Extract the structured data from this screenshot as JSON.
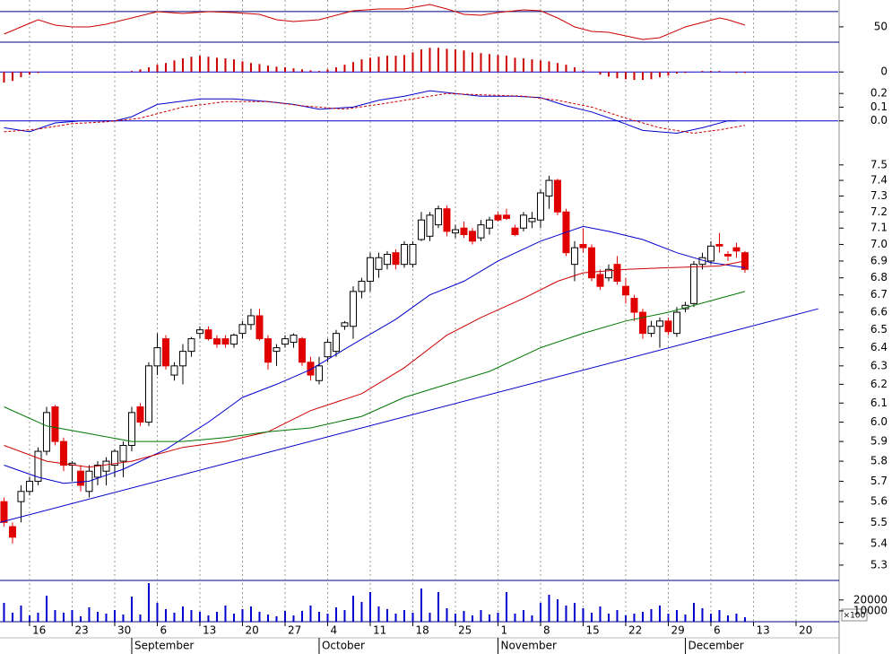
{
  "chart_data": [
    {
      "type": "line",
      "ylim": [
        30,
        85
      ],
      "yticks": [
        50
      ],
      "hlines": [
        70
      ],
      "series": [
        {
          "color": "#cc0000",
          "x": [
            0,
            2,
            4,
            6,
            8,
            10,
            12,
            15,
            18,
            21,
            24,
            27,
            30,
            32,
            34,
            37,
            41,
            44,
            47,
            50,
            52,
            54,
            56,
            58,
            61,
            63,
            65,
            67,
            69,
            71,
            73,
            75,
            77,
            80,
            82,
            84,
            85,
            87
          ],
          "values": [
            40.5,
            49.9,
            59.3,
            52.2,
            49.9,
            49.9,
            53.4,
            61.6,
            69.8,
            67.4,
            69.8,
            68.6,
            66.3,
            59.3,
            56.9,
            59.3,
            71,
            73.3,
            73.3,
            79.2,
            73.3,
            66.3,
            65.1,
            68.6,
            72.1,
            71,
            61.6,
            49.9,
            44,
            42.9,
            38.2,
            33.5,
            35.9,
            49.9,
            55.7,
            61.6,
            59.3,
            52.2
          ]
        }
      ]
    },
    {
      "type": "bar",
      "ylim": [
        -0.04,
        0.09
      ],
      "yticks": [
        0
      ],
      "zero_line": true,
      "color": "#cc0000",
      "values": [
        -0.032,
        -0.027,
        -0.016,
        -0.008,
        -0.003,
        0,
        0,
        0,
        0,
        0,
        0,
        0,
        0,
        0,
        0,
        0.003,
        0.008,
        0.014,
        0.022,
        0.027,
        0.035,
        0.041,
        0.046,
        0.049,
        0.046,
        0.043,
        0.041,
        0.038,
        0.032,
        0.027,
        0.024,
        0.019,
        0.016,
        0.014,
        0.011,
        0.008,
        0.005,
        0.003,
        0.008,
        0.014,
        0.022,
        0.03,
        0.038,
        0.043,
        0.046,
        0.049,
        0.049,
        0.051,
        0.059,
        0.068,
        0.073,
        0.073,
        0.07,
        0.068,
        0.065,
        0.059,
        0.057,
        0.054,
        0.051,
        0.049,
        0.043,
        0.041,
        0.038,
        0.035,
        0.032,
        0.027,
        0.022,
        0.014,
        0.005,
        0,
        -0.008,
        -0.014,
        -0.019,
        -0.022,
        -0.024,
        -0.024,
        -0.022,
        -0.016,
        -0.011,
        -0.005,
        -0.003,
        0,
        0.003,
        0.003,
        0.003,
        0,
        -0.003,
        -0.003
      ]
    },
    {
      "type": "line",
      "ylim": [
        -0.1,
        0.26
      ],
      "yticks": [
        0.2,
        0.1,
        {
          "value": 0,
          "label": "0.0"
        }
      ],
      "zero_line": true,
      "series": [
        {
          "color": "#0000cc",
          "x": [
            0,
            3,
            6,
            9,
            13,
            15,
            18,
            23,
            27,
            31,
            34,
            37,
            41,
            44,
            47,
            50,
            53,
            56,
            60,
            63,
            66,
            69,
            72,
            75,
            79,
            82,
            85,
            86
          ],
          "values": [
            -0.05,
            -0.08,
            -0.015,
            0,
            0,
            0.03,
            0.12,
            0.16,
            0.16,
            0.14,
            0.12,
            0.085,
            0.1,
            0.15,
            0.18,
            0.22,
            0.2,
            0.18,
            0.18,
            0.17,
            0.11,
            0.065,
            0,
            -0.07,
            -0.09,
            -0.05,
            0,
            0
          ]
        },
        {
          "color": "#cc0000",
          "dash": true,
          "x": [
            0,
            4,
            8,
            12,
            16,
            21,
            26,
            31,
            35,
            40,
            44,
            48,
            52,
            56,
            61,
            65,
            69,
            73,
            77,
            81,
            84,
            87
          ],
          "values": [
            -0.08,
            -0.06,
            -0.02,
            -0.007,
            0.02,
            0.1,
            0.14,
            0.14,
            0.11,
            0.085,
            0.12,
            0.16,
            0.2,
            0.19,
            0.18,
            0.15,
            0.1,
            0.02,
            -0.05,
            -0.09,
            -0.065,
            -0.033
          ]
        }
      ]
    },
    {
      "type": "candlestick",
      "log_scale": true,
      "ylim": [
        5.23,
        7.7
      ],
      "yticks": [
        7.5,
        7.4,
        7.3,
        7.2,
        7.1,
        {
          "value": 7,
          "label": "7.0"
        },
        6.9,
        6.8,
        6.7,
        6.6,
        6.5,
        6.4,
        6.3,
        6.2,
        6.1,
        {
          "value": 6,
          "label": "6.0"
        },
        5.9,
        5.8,
        5.7,
        5.6,
        5.5,
        5.4,
        5.3
      ],
      "up_color": "#ffffff",
      "down_color": "#e00000",
      "outline_color": "#000000",
      "open": [
        5.6,
        5.48,
        5.6,
        5.65,
        5.7,
        5.85,
        6.08,
        5.9,
        5.78,
        5.75,
        5.65,
        5.72,
        5.75,
        5.78,
        5.8,
        5.88,
        6.08,
        6.0,
        6.3,
        6.45,
        6.25,
        6.3,
        6.38,
        6.48,
        6.5,
        6.45,
        6.45,
        6.42,
        6.48,
        6.53,
        6.58,
        6.45,
        6.38,
        6.42,
        6.43,
        6.45,
        6.32,
        6.22,
        6.35,
        6.38,
        6.52,
        6.52,
        6.72,
        6.78,
        6.85,
        6.88,
        6.95,
        6.88,
        6.88,
        7.03,
        7.05,
        7.12,
        7.22,
        7.07,
        7.1,
        7.08,
        7.04,
        7.1,
        7.18,
        7.18,
        7.1,
        7.1,
        7.14,
        7.15,
        7.3,
        7.4,
        7.2,
        6.88,
        7.0,
        6.98,
        6.82,
        6.8,
        6.88,
        6.75,
        6.68,
        6.6,
        6.48,
        6.52,
        6.55,
        6.48,
        6.62,
        6.65,
        6.88,
        6.9,
        7.0,
        6.94,
        6.98,
        6.95
      ],
      "high": [
        5.62,
        5.5,
        5.68,
        5.72,
        5.87,
        6.08,
        6.09,
        5.92,
        5.8,
        5.78,
        5.78,
        5.8,
        5.82,
        5.86,
        5.9,
        6.08,
        6.1,
        6.32,
        6.48,
        6.47,
        6.32,
        6.42,
        6.46,
        6.52,
        6.52,
        6.47,
        6.47,
        6.48,
        6.55,
        6.62,
        6.62,
        6.47,
        6.42,
        6.47,
        6.48,
        6.46,
        6.35,
        6.35,
        6.45,
        6.5,
        6.55,
        6.75,
        6.8,
        6.95,
        6.95,
        6.96,
        6.97,
        7.02,
        7.02,
        7.2,
        7.2,
        7.24,
        7.24,
        7.12,
        7.14,
        7.1,
        7.15,
        7.17,
        7.2,
        7.22,
        7.12,
        7.2,
        7.2,
        7.34,
        7.43,
        7.41,
        7.22,
        7.02,
        7.1,
        7.0,
        6.85,
        6.88,
        6.93,
        6.8,
        6.7,
        6.62,
        6.55,
        6.57,
        6.57,
        6.63,
        6.66,
        6.9,
        6.95,
        7.02,
        7.07,
        6.96,
        7.01,
        6.96
      ],
      "low": [
        5.48,
        5.4,
        5.5,
        5.63,
        5.68,
        5.83,
        5.88,
        5.75,
        5.7,
        5.65,
        5.62,
        5.68,
        5.68,
        5.72,
        5.72,
        5.85,
        5.98,
        5.98,
        6.25,
        6.28,
        6.22,
        6.2,
        6.35,
        6.45,
        6.44,
        6.4,
        6.4,
        6.4,
        6.45,
        6.5,
        6.44,
        6.28,
        6.3,
        6.4,
        6.4,
        6.3,
        6.22,
        6.2,
        6.32,
        6.35,
        6.5,
        6.45,
        6.68,
        6.72,
        6.8,
        6.85,
        6.85,
        6.86,
        6.86,
        7.02,
        7.02,
        7.1,
        7.05,
        7.04,
        7.04,
        7.0,
        7.02,
        7.06,
        7.14,
        7.15,
        7.05,
        7.08,
        7.1,
        7.1,
        7.22,
        7.18,
        6.93,
        6.78,
        6.95,
        6.78,
        6.73,
        6.78,
        6.76,
        6.65,
        6.55,
        6.45,
        6.46,
        6.4,
        6.47,
        6.46,
        6.6,
        6.63,
        6.85,
        6.88,
        6.95,
        6.9,
        6.92,
        6.83
      ],
      "close": [
        5.5,
        5.43,
        5.65,
        5.7,
        5.85,
        6.05,
        5.9,
        5.78,
        5.79,
        5.68,
        5.75,
        5.78,
        5.8,
        5.85,
        5.88,
        6.05,
        6.0,
        6.3,
        6.4,
        6.3,
        6.3,
        6.38,
        6.45,
        6.5,
        6.45,
        6.42,
        6.42,
        6.47,
        6.53,
        6.58,
        6.45,
        6.32,
        6.4,
        6.45,
        6.47,
        6.32,
        6.25,
        6.3,
        6.43,
        6.48,
        6.54,
        6.72,
        6.78,
        6.92,
        6.92,
        6.94,
        6.88,
        7.0,
        7.0,
        7.15,
        7.18,
        7.22,
        7.08,
        7.09,
        7.06,
        7.02,
        7.12,
        7.15,
        7.15,
        7.16,
        7.06,
        7.18,
        7.16,
        7.32,
        7.4,
        7.2,
        6.95,
        6.98,
        6.98,
        6.8,
        6.75,
        6.85,
        6.78,
        6.7,
        6.6,
        6.48,
        6.52,
        6.55,
        6.49,
        6.6,
        6.64,
        6.88,
        6.92,
        6.99,
        6.99,
        6.93,
        6.96,
        6.85
      ],
      "series": [
        {
          "color": "#0000cc",
          "x": [
            0,
            4,
            7,
            10,
            14,
            19,
            24,
            28,
            32,
            36,
            41,
            46,
            50,
            54,
            58,
            63,
            68,
            71,
            75,
            79,
            83,
            87
          ],
          "values": [
            5.78,
            5.72,
            5.69,
            5.7,
            5.76,
            5.86,
            6.0,
            6.13,
            6.2,
            6.28,
            6.42,
            6.56,
            6.7,
            6.78,
            6.9,
            7.02,
            7.11,
            7.08,
            7.03,
            6.95,
            6.89,
            6.86
          ]
        },
        {
          "color": "#cc0000",
          "x": [
            0,
            5,
            10,
            15,
            21,
            26,
            31,
            36,
            42,
            47,
            52,
            56,
            61,
            65,
            68,
            73,
            78,
            84,
            87
          ],
          "values": [
            5.88,
            5.8,
            5.77,
            5.8,
            5.87,
            5.9,
            5.95,
            6.06,
            6.15,
            6.29,
            6.47,
            6.57,
            6.68,
            6.78,
            6.83,
            6.85,
            6.86,
            6.87,
            6.9
          ]
        },
        {
          "color": "#007700",
          "x": [
            0,
            5,
            10,
            15,
            21,
            26,
            31,
            36,
            42,
            47,
            52,
            57,
            63,
            68,
            73,
            78,
            84,
            87
          ],
          "values": [
            6.08,
            5.98,
            5.94,
            5.9,
            5.9,
            5.92,
            5.95,
            5.97,
            6.03,
            6.13,
            6.2,
            6.27,
            6.4,
            6.48,
            6.55,
            6.6,
            6.68,
            6.72
          ]
        },
        {
          "color": "#0000cc",
          "x": [
            -0.47,
            95.6
          ],
          "values": [
            5.5,
            6.62
          ]
        }
      ]
    },
    {
      "type": "bar",
      "ylim": [
        0,
        38000
      ],
      "yticks": [
        20000,
        10000
      ],
      "unit_label": "×100",
      "color": "#0000cc",
      "values": [
        17300,
        8300,
        14900,
        5800,
        8300,
        24000,
        10700,
        8300,
        10700,
        5000,
        13200,
        9100,
        7400,
        10700,
        6600,
        23100,
        6600,
        35500,
        17300,
        11600,
        8300,
        14000,
        10700,
        9100,
        5800,
        9100,
        14900,
        7400,
        11600,
        14000,
        9100,
        6600,
        5000,
        9900,
        5800,
        9900,
        14900,
        9100,
        7400,
        13200,
        10700,
        24000,
        18200,
        27300,
        14000,
        11600,
        7400,
        10700,
        8300,
        30600,
        8300,
        27300,
        12400,
        7400,
        9900,
        5800,
        10700,
        6600,
        8300,
        27300,
        7400,
        10700,
        5800,
        17300,
        24800,
        20700,
        14900,
        17300,
        12400,
        8300,
        14000,
        7400,
        10700,
        5800,
        7400,
        9100,
        11600,
        14900,
        7400,
        10700,
        6600,
        17300,
        12400,
        7400,
        10700,
        5800,
        7400,
        4100
      ],
      "xlim": [
        -0.47,
        97.95
      ],
      "grid": true,
      "xticks": [
        {
          "value": 3,
          "label": "16"
        },
        {
          "value": 8,
          "label": "23"
        },
        {
          "value": 13,
          "label": "30"
        },
        {
          "value": 18,
          "label": "6"
        },
        {
          "value": 23,
          "label": "13"
        },
        {
          "value": 28,
          "label": "20"
        },
        {
          "value": 33,
          "label": "27"
        },
        {
          "value": 38,
          "label": "4"
        },
        {
          "value": 43,
          "label": "11"
        },
        {
          "value": 48,
          "label": "18"
        },
        {
          "value": 53,
          "label": "25"
        },
        {
          "value": 58,
          "label": "1"
        },
        {
          "value": 63,
          "label": "8"
        },
        {
          "value": 68,
          "label": "15"
        },
        {
          "value": 73,
          "label": "22"
        },
        {
          "value": 78,
          "label": "29"
        },
        {
          "value": 83,
          "label": "6"
        },
        {
          "value": 88,
          "label": "13"
        },
        {
          "value": 93,
          "label": "20"
        }
      ],
      "month_ticks": [
        {
          "value": 15,
          "label": "September"
        },
        {
          "value": 37,
          "label": "October"
        },
        {
          "value": 58,
          "label": "November"
        },
        {
          "value": 80,
          "label": "December"
        }
      ]
    }
  ]
}
